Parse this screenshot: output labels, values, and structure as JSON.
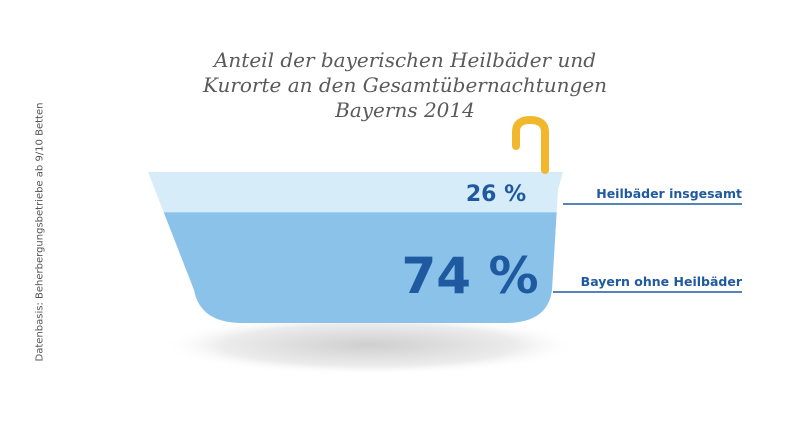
{
  "title": {
    "line1": "Anteil der bayerischen Heilbäder und",
    "line2": "Kurorte an den Gesamtübernachtungen",
    "line3": "Bayerns 2014"
  },
  "source_note": "Datenbasis: Beherbergungsbetriebe ab 9/10 Betten",
  "colors": {
    "top_water": "#d7ecf9",
    "bottom_water": "#8ac2ea",
    "text_blue": "#1f5aa0",
    "faucet": "#f1b82d",
    "title": "#5a5a5a"
  },
  "chart_data": {
    "type": "bar",
    "title": "Anteil der bayerischen Heilbäder und Kurorte an den Gesamtübernachtungen Bayerns 2014",
    "categories": [
      "Heilbäder insgesamt",
      "Bayern ohne Heilbäder"
    ],
    "values": [
      26,
      74
    ],
    "unit": "%",
    "value_labels": [
      "26 %",
      "74 %"
    ]
  }
}
